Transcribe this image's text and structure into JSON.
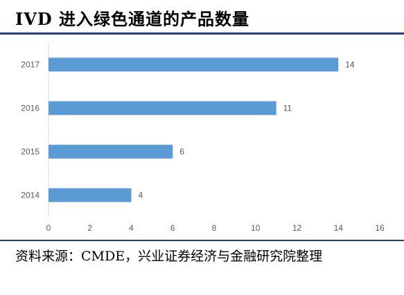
{
  "title": "IVD 进入绿色通道的产品数量",
  "source": "资料来源：CMDE，兴业证券经济与金融研究院整理",
  "colors": {
    "bar": "#5b9bd5",
    "axis": "#d9d9d9",
    "rule": "#1f3d7a"
  },
  "chart_data": {
    "type": "bar",
    "orientation": "horizontal",
    "categories": [
      "2017",
      "2016",
      "2015",
      "2014"
    ],
    "values": [
      14,
      11,
      6,
      4
    ],
    "xlim": [
      0,
      16
    ],
    "xticks": [
      0,
      2,
      4,
      6,
      8,
      10,
      12,
      14,
      16
    ],
    "data_labels": true,
    "grid": false
  }
}
